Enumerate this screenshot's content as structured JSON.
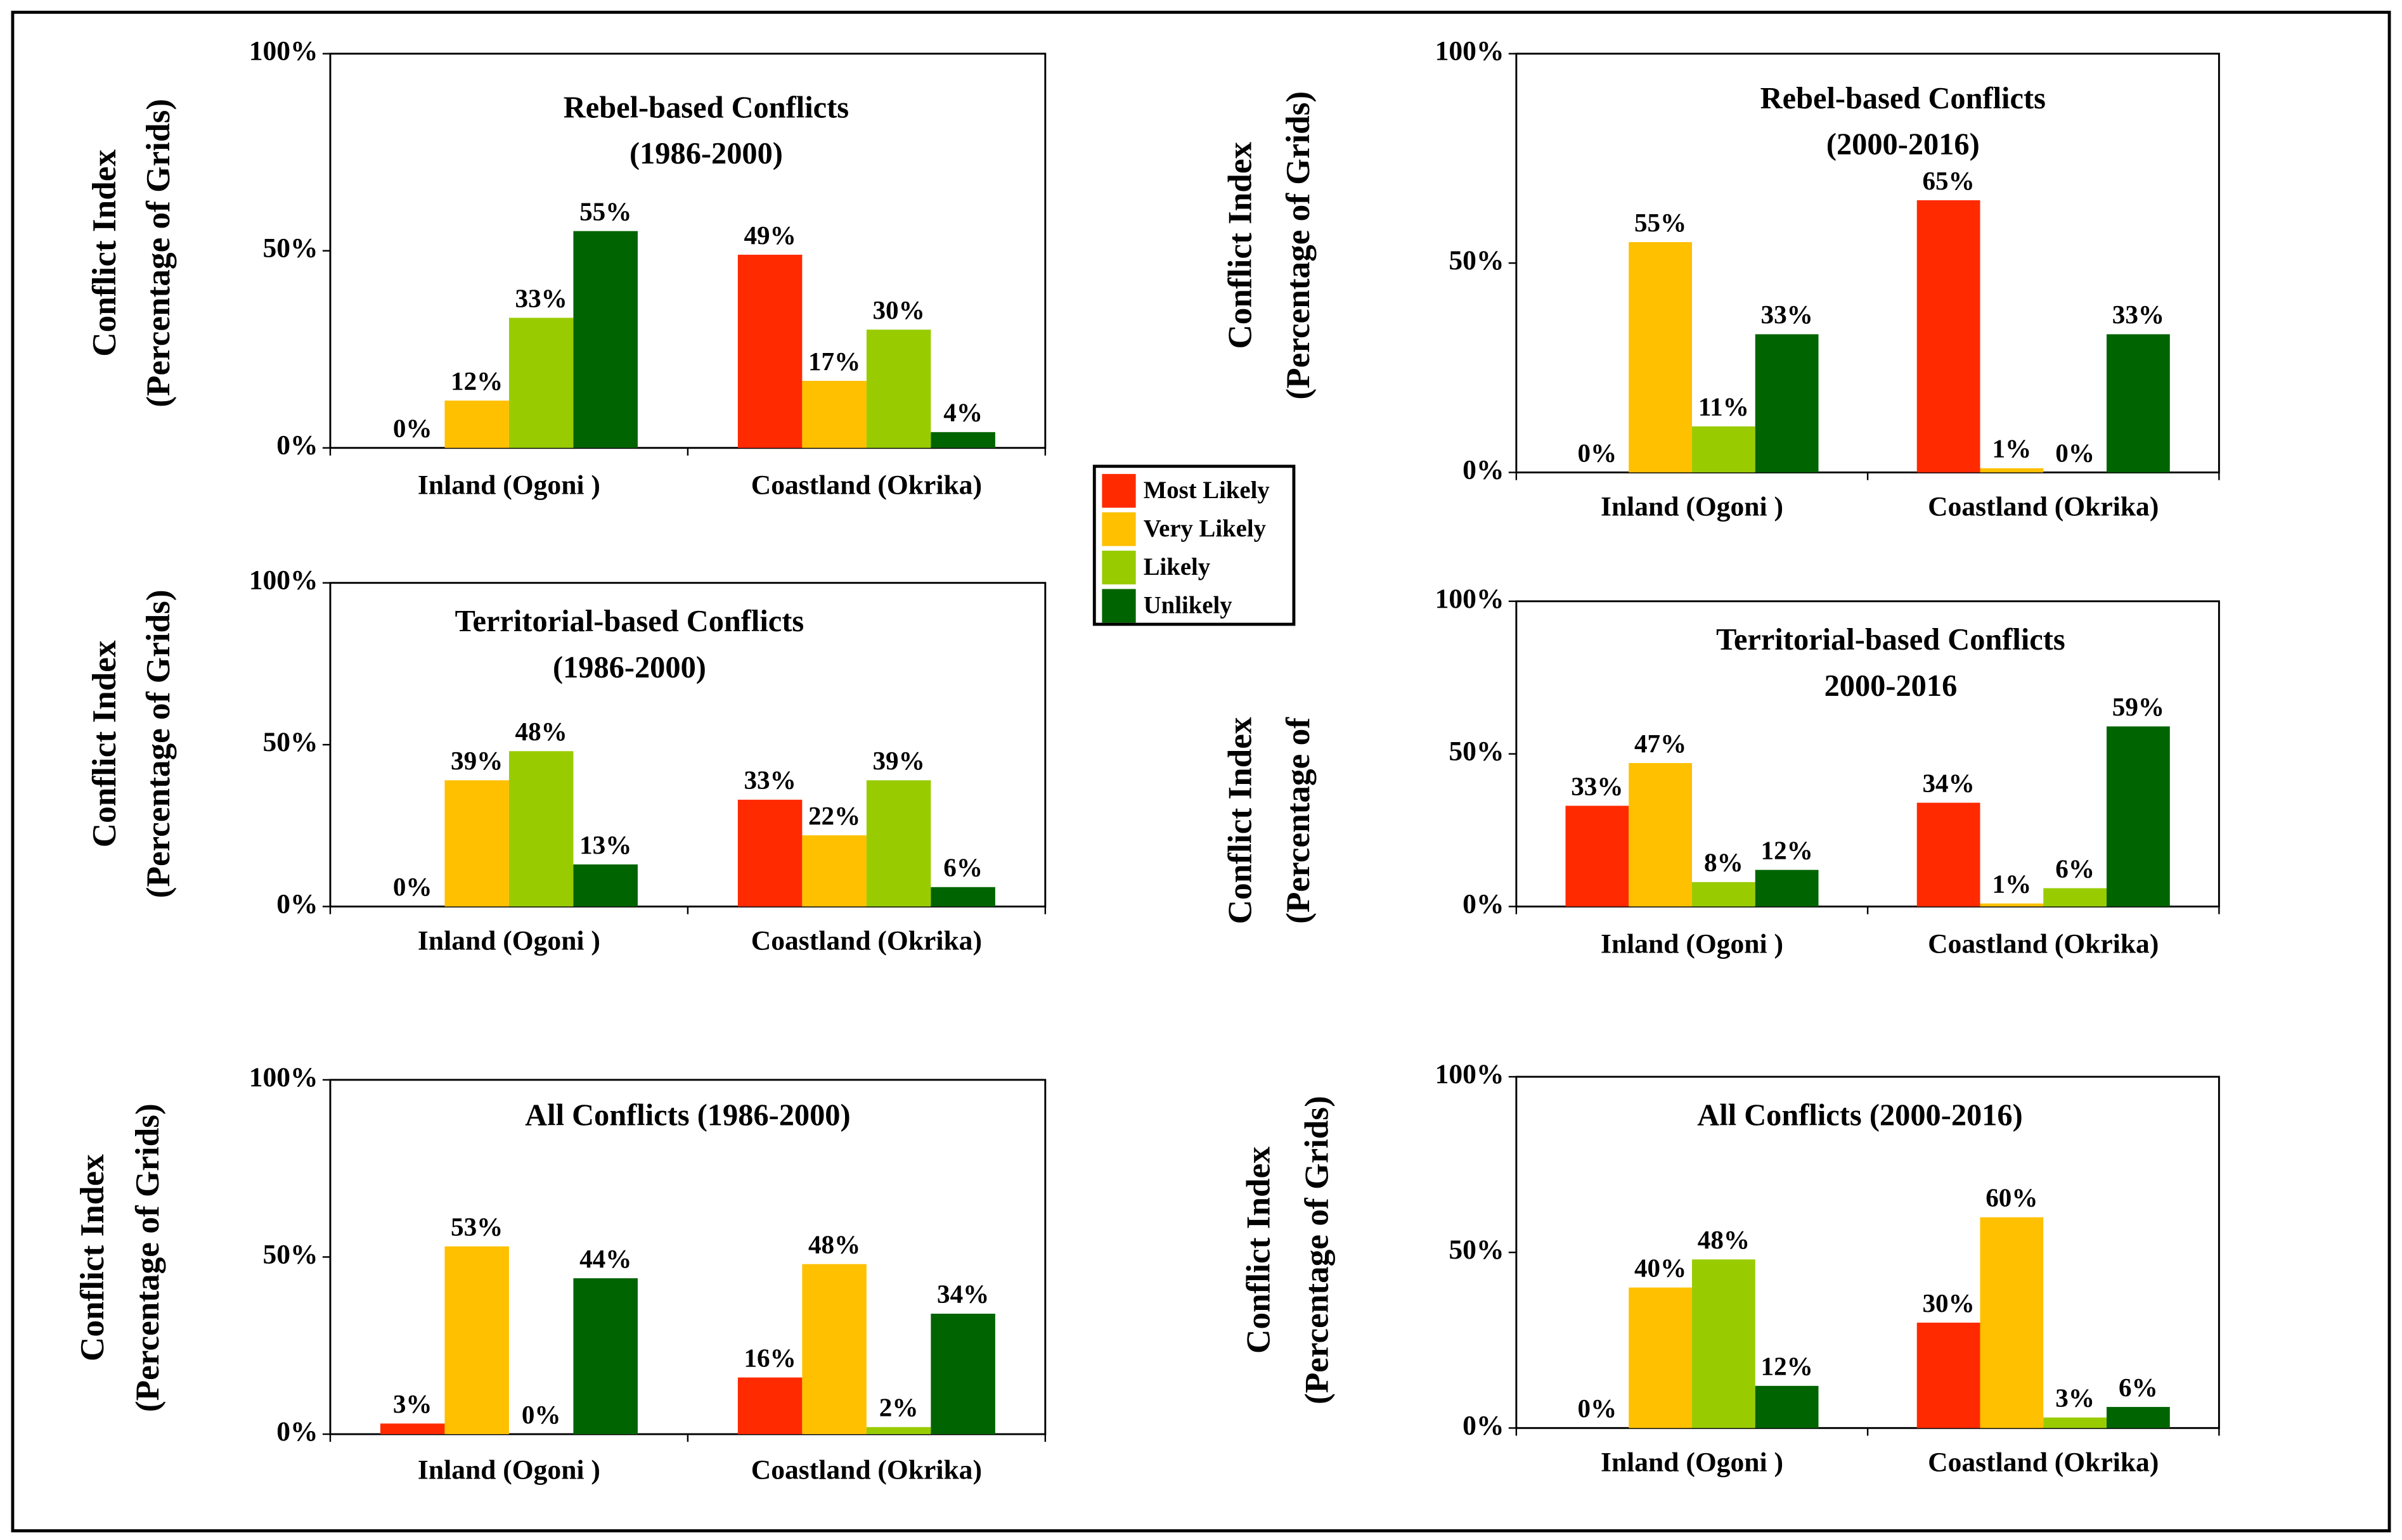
{
  "legend": {
    "series": [
      {
        "name": "Most Likely",
        "color": "#ff2a00"
      },
      {
        "name": "Very Likely",
        "color": "#ffc000"
      },
      {
        "name": "Likely",
        "color": "#99cc00"
      },
      {
        "name": "Unlikely",
        "color": "#006400"
      }
    ]
  },
  "chart_data": [
    {
      "type": "bar",
      "title": "Rebel-based Conflicts",
      "subtitle": "(1986-2000)",
      "ylabel": [
        "Conflict Index",
        "(Percentage of Grids)"
      ],
      "categories": [
        "Inland (Ogoni )",
        "Coastland (Okrika)"
      ],
      "series": [
        {
          "values": [
            0,
            49
          ],
          "value_labels": [
            "0%",
            "49%"
          ]
        },
        {
          "values": [
            12,
            17
          ],
          "value_labels": [
            "12%",
            "17%"
          ]
        },
        {
          "values": [
            33,
            30
          ],
          "value_labels": [
            "33%",
            "30%"
          ]
        },
        {
          "values": [
            55,
            4
          ],
          "value_labels": [
            "55%",
            "4%"
          ]
        }
      ],
      "ylim": [
        0,
        100
      ],
      "yticks": [
        {
          "value": 0,
          "label": "0%"
        },
        {
          "value": 50,
          "label": "50%"
        },
        {
          "value": 100,
          "label": "100%"
        }
      ]
    },
    {
      "type": "bar",
      "title": "Rebel-based Conflicts",
      "subtitle": "(2000-2016)",
      "ylabel": [
        "Conflict Index",
        "(Percentage of Grids)"
      ],
      "categories": [
        "Inland (Ogoni )",
        "Coastland (Okrika)"
      ],
      "series": [
        {
          "values": [
            0,
            65
          ],
          "value_labels": [
            "0%",
            "65%"
          ]
        },
        {
          "values": [
            55,
            1
          ],
          "value_labels": [
            "55%",
            "1%"
          ]
        },
        {
          "values": [
            11,
            0
          ],
          "value_labels": [
            "11%",
            "0%"
          ]
        },
        {
          "values": [
            33,
            33
          ],
          "value_labels": [
            "33%",
            "33%"
          ]
        }
      ],
      "ylim": [
        0,
        100
      ],
      "yticks": [
        {
          "value": 0,
          "label": "0%"
        },
        {
          "value": 50,
          "label": "50%"
        },
        {
          "value": 100,
          "label": "100%"
        }
      ]
    },
    {
      "type": "bar",
      "title": "Territorial-based Conflicts",
      "subtitle": "(1986-2000)",
      "ylabel": [
        "Conflict Index",
        "(Percentage of Grids)"
      ],
      "categories": [
        "Inland (Ogoni )",
        "Coastland (Okrika)"
      ],
      "series": [
        {
          "values": [
            0,
            33
          ],
          "value_labels": [
            "0%",
            "33%"
          ]
        },
        {
          "values": [
            39,
            22
          ],
          "value_labels": [
            "39%",
            "22%"
          ]
        },
        {
          "values": [
            48,
            39
          ],
          "value_labels": [
            "48%",
            "39%"
          ]
        },
        {
          "values": [
            13,
            6
          ],
          "value_labels": [
            "13%",
            "6%"
          ]
        }
      ],
      "ylim": [
        0,
        100
      ],
      "yticks": [
        {
          "value": 0,
          "label": "0%"
        },
        {
          "value": 50,
          "label": "50%"
        },
        {
          "value": 100,
          "label": "100%"
        }
      ]
    },
    {
      "type": "bar",
      "title": "Territorial-based Conflicts",
      "subtitle": "2000-2016",
      "ylabel": [
        "Conflict Index",
        "(Percentage of"
      ],
      "categories": [
        "Inland (Ogoni )",
        "Coastland (Okrika)"
      ],
      "series": [
        {
          "values": [
            33,
            34
          ],
          "value_labels": [
            "33%",
            "34%"
          ]
        },
        {
          "values": [
            47,
            1
          ],
          "value_labels": [
            "47%",
            "1%"
          ]
        },
        {
          "values": [
            8,
            6
          ],
          "value_labels": [
            "8%",
            "6%"
          ]
        },
        {
          "values": [
            12,
            59
          ],
          "value_labels": [
            "12%",
            "59%"
          ]
        }
      ],
      "ylim": [
        0,
        100
      ],
      "yticks": [
        {
          "value": 0,
          "label": "0%"
        },
        {
          "value": 50,
          "label": "50%"
        },
        {
          "value": 100,
          "label": "100%"
        }
      ]
    },
    {
      "type": "bar",
      "title": "All Conflicts (1986-2000)",
      "ylabel": [
        "Conflict Index",
        "(Percentage of Grids)"
      ],
      "categories": [
        "Inland (Ogoni )",
        "Coastland (Okrika)"
      ],
      "series": [
        {
          "values": [
            3,
            16
          ],
          "value_labels": [
            "3%",
            "16%"
          ]
        },
        {
          "values": [
            53,
            48
          ],
          "value_labels": [
            "53%",
            "48%"
          ]
        },
        {
          "values": [
            0,
            2
          ],
          "value_labels": [
            "0%",
            "2%"
          ]
        },
        {
          "values": [
            44,
            34
          ],
          "value_labels": [
            "44%",
            "34%"
          ]
        }
      ],
      "ylim": [
        0,
        100
      ],
      "yticks": [
        {
          "value": 0,
          "label": "0%"
        },
        {
          "value": 50,
          "label": "50%"
        },
        {
          "value": 100,
          "label": "100%"
        }
      ]
    },
    {
      "type": "bar",
      "title": "All Conflicts (2000-2016)",
      "ylabel": [
        "Conflict Index",
        "(Percentage of Grids)"
      ],
      "categories": [
        "Inland (Ogoni )",
        "Coastland (Okrika)"
      ],
      "series": [
        {
          "values": [
            0,
            30
          ],
          "value_labels": [
            "0%",
            "30%"
          ]
        },
        {
          "values": [
            40,
            60
          ],
          "value_labels": [
            "40%",
            "60%"
          ]
        },
        {
          "values": [
            48,
            3
          ],
          "value_labels": [
            "48%",
            "3%"
          ]
        },
        {
          "values": [
            12,
            6
          ],
          "value_labels": [
            "12%",
            "6%"
          ]
        }
      ],
      "ylim": [
        0,
        100
      ],
      "yticks": [
        {
          "value": 0,
          "label": "0%"
        },
        {
          "value": 50,
          "label": "50%"
        },
        {
          "value": 100,
          "label": "100%"
        }
      ]
    }
  ]
}
